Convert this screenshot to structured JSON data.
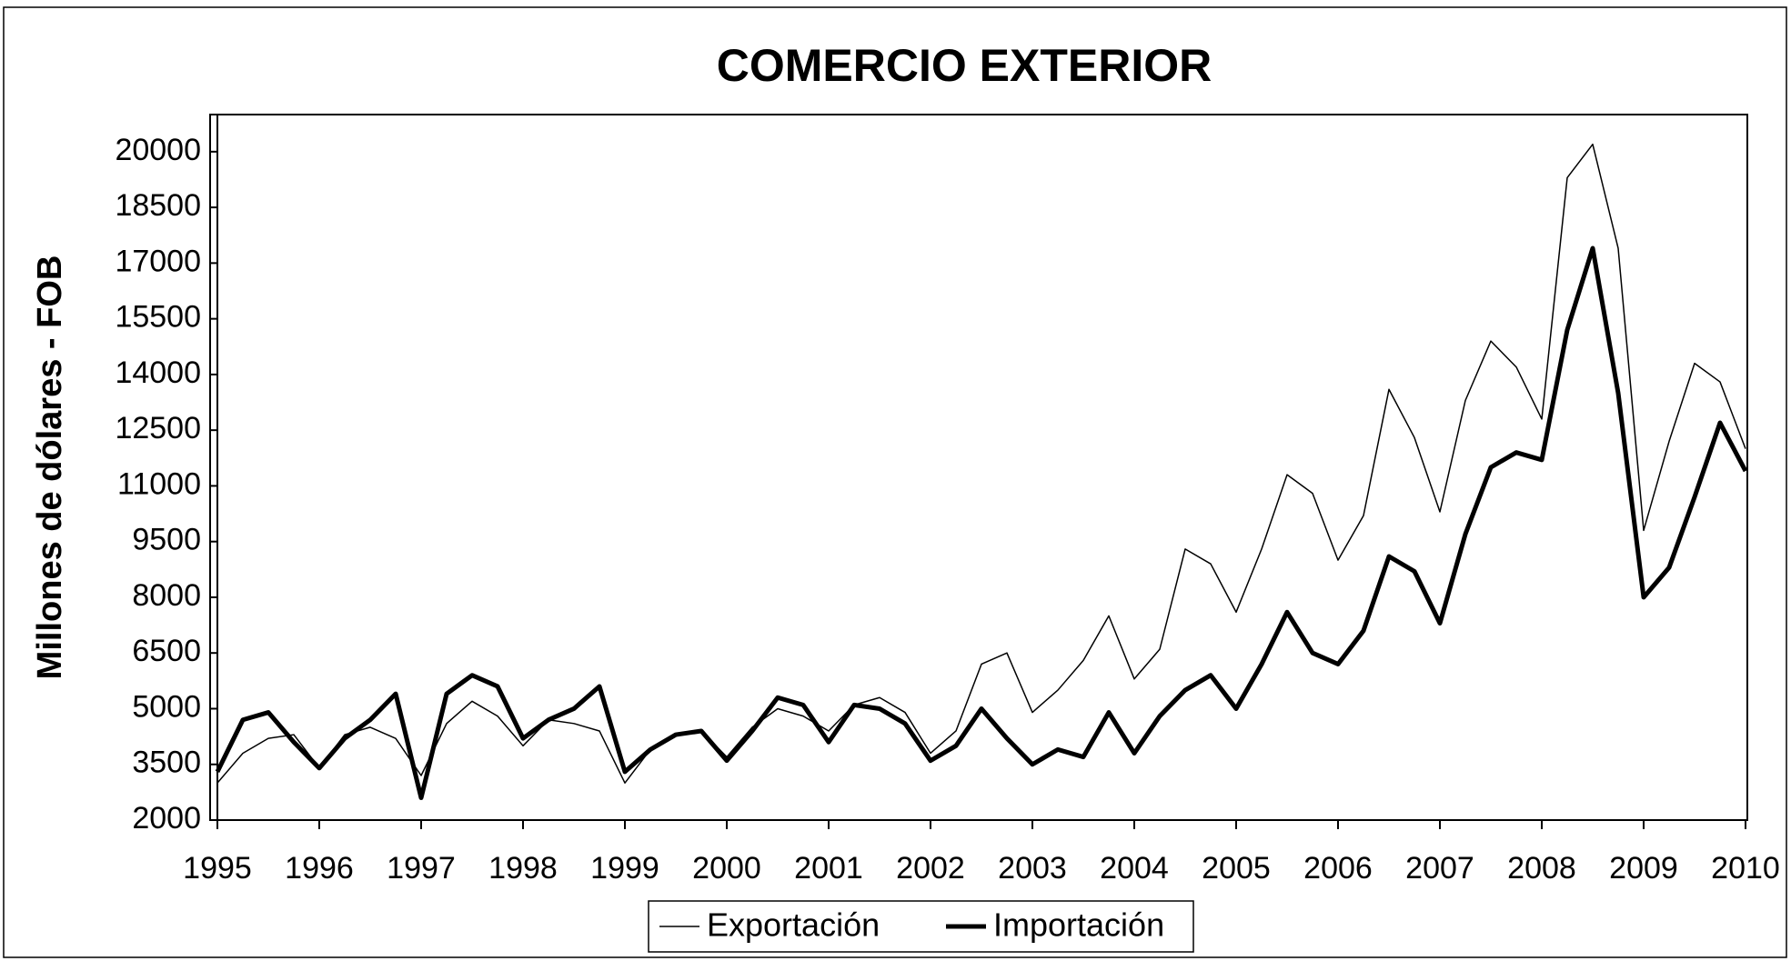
{
  "chart_data": {
    "type": "line",
    "title": "COMERCIO EXTERIOR",
    "ylabel": "Millones de dólares - FOB",
    "x": [
      1995,
      1995.25,
      1995.5,
      1995.75,
      1996,
      1996.25,
      1996.5,
      1996.75,
      1997,
      1997.25,
      1997.5,
      1997.75,
      1998,
      1998.25,
      1998.5,
      1998.75,
      1999,
      1999.25,
      1999.5,
      1999.75,
      2000,
      2000.25,
      2000.5,
      2000.75,
      2001,
      2001.25,
      2001.5,
      2001.75,
      2002,
      2002.25,
      2002.5,
      2002.75,
      2003,
      2003.25,
      2003.5,
      2003.75,
      2004,
      2004.25,
      2004.5,
      2004.75,
      2005,
      2005.25,
      2005.5,
      2005.75,
      2006,
      2006.25,
      2006.5,
      2006.75,
      2007,
      2007.25,
      2007.5,
      2007.75,
      2008,
      2008.25,
      2008.5,
      2008.75,
      2009,
      2009.25,
      2009.5,
      2009.75,
      2010
    ],
    "series": [
      {
        "name": "Exportación",
        "color": "#000000",
        "width": 1.5,
        "values": [
          3000,
          3800,
          4200,
          4300,
          3400,
          4300,
          4500,
          4200,
          3200,
          4600,
          5200,
          4800,
          4000,
          4700,
          4600,
          4400,
          3000,
          3900,
          4300,
          4400,
          3700,
          4500,
          5000,
          4800,
          4400,
          5100,
          5300,
          4900,
          3800,
          4400,
          6200,
          6500,
          4900,
          5500,
          6300,
          7500,
          5800,
          6600,
          9300,
          8900,
          7600,
          9300,
          11300,
          10800,
          9000,
          10200,
          13600,
          12300,
          10300,
          13300,
          14900,
          14200,
          12800,
          19300,
          20200,
          17400,
          9800,
          12200,
          14300,
          13800,
          12000
        ]
      },
      {
        "name": "Importación",
        "color": "#000000",
        "width": 5,
        "values": [
          3300,
          4700,
          4900,
          4100,
          3400,
          4200,
          4700,
          5400,
          2600,
          5400,
          5900,
          5600,
          4200,
          4700,
          5000,
          5600,
          3300,
          3900,
          4300,
          4400,
          3600,
          4400,
          5300,
          5100,
          4100,
          5100,
          5000,
          4600,
          3600,
          4000,
          5000,
          4200,
          3500,
          3900,
          3700,
          4900,
          3800,
          4800,
          5500,
          5900,
          5000,
          6200,
          7600,
          6500,
          6200,
          7100,
          9100,
          8700,
          7300,
          9700,
          11500,
          11900,
          11700,
          15200,
          17400,
          13500,
          8000,
          8800,
          10700,
          12700,
          11400
        ]
      }
    ],
    "xlim": [
      1995,
      2010
    ],
    "xticks": [
      1995,
      1996,
      1997,
      1998,
      1999,
      2000,
      2001,
      2002,
      2003,
      2004,
      2005,
      2006,
      2007,
      2008,
      2009,
      2010
    ],
    "ylim": [
      2000,
      21000
    ],
    "yticks": [
      2000,
      3500,
      5000,
      6500,
      8000,
      9500,
      11000,
      12500,
      14000,
      15500,
      17000,
      18500,
      20000
    ]
  }
}
